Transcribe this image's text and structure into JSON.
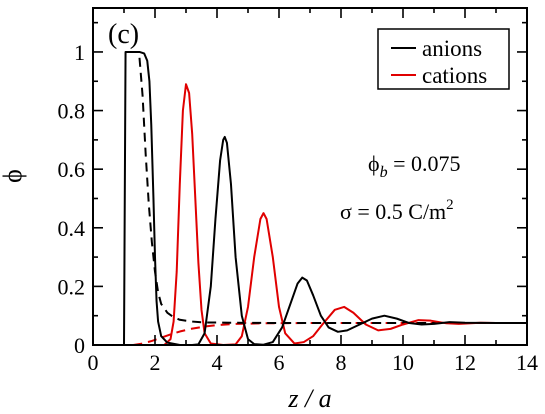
{
  "chart_data": {
    "type": "line",
    "title": "",
    "panel_label": "(c)",
    "xlabel": "z / a",
    "ylabel": "ϕ",
    "xlim": [
      0,
      14
    ],
    "ylim": [
      0,
      1.15
    ],
    "x_ticks": [
      "0",
      "2",
      "4",
      "6",
      "8",
      "10",
      "12",
      "14"
    ],
    "y_ticks": [
      "0",
      "0.2",
      "0.4",
      "0.6",
      "0.8",
      "1"
    ],
    "grid": false,
    "legend_position": "top-right",
    "annotations": {
      "phi_b_symbol": "ϕ",
      "phi_b_sub": "b",
      "phi_b_value": " = 0.075",
      "sigma_text": "σ = 0.5 C/m",
      "sigma_sup": "2"
    },
    "bulk_value": 0.075,
    "series": [
      {
        "name": "anions",
        "color": "#000000",
        "dash": "solid",
        "points": [
          [
            1.0,
            0.0
          ],
          [
            1.05,
            1.0
          ],
          [
            1.1,
            1.0
          ],
          [
            1.3,
            1.0
          ],
          [
            1.5,
            1.0
          ],
          [
            1.65,
            0.995
          ],
          [
            1.75,
            0.97
          ],
          [
            1.82,
            0.9
          ],
          [
            1.88,
            0.75
          ],
          [
            1.95,
            0.5
          ],
          [
            2.0,
            0.3
          ],
          [
            2.05,
            0.15
          ],
          [
            2.1,
            0.08
          ],
          [
            2.2,
            0.03
          ],
          [
            2.4,
            0.008
          ],
          [
            2.8,
            0.0
          ],
          [
            3.2,
            0.0
          ],
          [
            3.4,
            0.002
          ],
          [
            3.6,
            0.04
          ],
          [
            3.8,
            0.2
          ],
          [
            3.95,
            0.43
          ],
          [
            4.1,
            0.63
          ],
          [
            4.2,
            0.7
          ],
          [
            4.25,
            0.71
          ],
          [
            4.32,
            0.69
          ],
          [
            4.45,
            0.55
          ],
          [
            4.6,
            0.3
          ],
          [
            4.8,
            0.1
          ],
          [
            5.0,
            0.02
          ],
          [
            5.2,
            0.003
          ],
          [
            5.5,
            0.001
          ],
          [
            5.8,
            0.01
          ],
          [
            6.1,
            0.06
          ],
          [
            6.4,
            0.15
          ],
          [
            6.6,
            0.21
          ],
          [
            6.75,
            0.23
          ],
          [
            6.9,
            0.22
          ],
          [
            7.1,
            0.17
          ],
          [
            7.35,
            0.1
          ],
          [
            7.6,
            0.06
          ],
          [
            7.9,
            0.045
          ],
          [
            8.2,
            0.05
          ],
          [
            8.6,
            0.07
          ],
          [
            9.0,
            0.09
          ],
          [
            9.4,
            0.1
          ],
          [
            9.8,
            0.09
          ],
          [
            10.2,
            0.075
          ],
          [
            10.6,
            0.07
          ],
          [
            11.0,
            0.072
          ],
          [
            11.5,
            0.078
          ],
          [
            12.0,
            0.076
          ],
          [
            13.0,
            0.075
          ],
          [
            14.0,
            0.075
          ]
        ]
      },
      {
        "name": "cations",
        "color": "#e00000",
        "dash": "solid",
        "points": [
          [
            2.3,
            0.0
          ],
          [
            2.5,
            0.02
          ],
          [
            2.6,
            0.08
          ],
          [
            2.7,
            0.25
          ],
          [
            2.8,
            0.55
          ],
          [
            2.9,
            0.8
          ],
          [
            3.0,
            0.89
          ],
          [
            3.1,
            0.86
          ],
          [
            3.2,
            0.72
          ],
          [
            3.3,
            0.5
          ],
          [
            3.4,
            0.28
          ],
          [
            3.5,
            0.12
          ],
          [
            3.6,
            0.04
          ],
          [
            3.8,
            0.005
          ],
          [
            4.2,
            0.0
          ],
          [
            4.6,
            0.002
          ],
          [
            4.8,
            0.03
          ],
          [
            5.0,
            0.13
          ],
          [
            5.2,
            0.3
          ],
          [
            5.4,
            0.43
          ],
          [
            5.5,
            0.45
          ],
          [
            5.6,
            0.43
          ],
          [
            5.8,
            0.3
          ],
          [
            6.0,
            0.13
          ],
          [
            6.2,
            0.04
          ],
          [
            6.5,
            0.005
          ],
          [
            6.8,
            0.01
          ],
          [
            7.1,
            0.03
          ],
          [
            7.4,
            0.07
          ],
          [
            7.8,
            0.12
          ],
          [
            8.1,
            0.13
          ],
          [
            8.4,
            0.11
          ],
          [
            8.8,
            0.07
          ],
          [
            9.2,
            0.05
          ],
          [
            9.6,
            0.055
          ],
          [
            10.0,
            0.07
          ],
          [
            10.5,
            0.085
          ],
          [
            10.9,
            0.083
          ],
          [
            11.4,
            0.074
          ],
          [
            11.8,
            0.072
          ],
          [
            12.5,
            0.076
          ],
          [
            13.0,
            0.075
          ],
          [
            14.0,
            0.075
          ]
        ]
      },
      {
        "name": "anions (dashed)",
        "color": "#000000",
        "dash": "dashed",
        "points": [
          [
            1.5,
            0.98
          ],
          [
            1.6,
            0.85
          ],
          [
            1.7,
            0.65
          ],
          [
            1.8,
            0.48
          ],
          [
            1.9,
            0.35
          ],
          [
            2.0,
            0.25
          ],
          [
            2.1,
            0.18
          ],
          [
            2.2,
            0.14
          ],
          [
            2.4,
            0.11
          ],
          [
            2.6,
            0.095
          ],
          [
            2.8,
            0.086
          ],
          [
            3.2,
            0.08
          ],
          [
            3.6,
            0.077
          ],
          [
            4.5,
            0.076
          ],
          [
            6.0,
            0.075
          ],
          [
            14.0,
            0.075
          ]
        ]
      },
      {
        "name": "cations (dashed)",
        "color": "#e00000",
        "dash": "dashed",
        "points": [
          [
            1.3,
            0.0
          ],
          [
            1.6,
            0.005
          ],
          [
            1.9,
            0.014
          ],
          [
            2.2,
            0.025
          ],
          [
            2.5,
            0.036
          ],
          [
            2.8,
            0.046
          ],
          [
            3.2,
            0.056
          ],
          [
            3.6,
            0.063
          ],
          [
            4.0,
            0.068
          ],
          [
            4.6,
            0.072
          ],
          [
            5.5,
            0.074
          ],
          [
            7.0,
            0.075
          ],
          [
            14.0,
            0.075
          ]
        ]
      }
    ]
  }
}
